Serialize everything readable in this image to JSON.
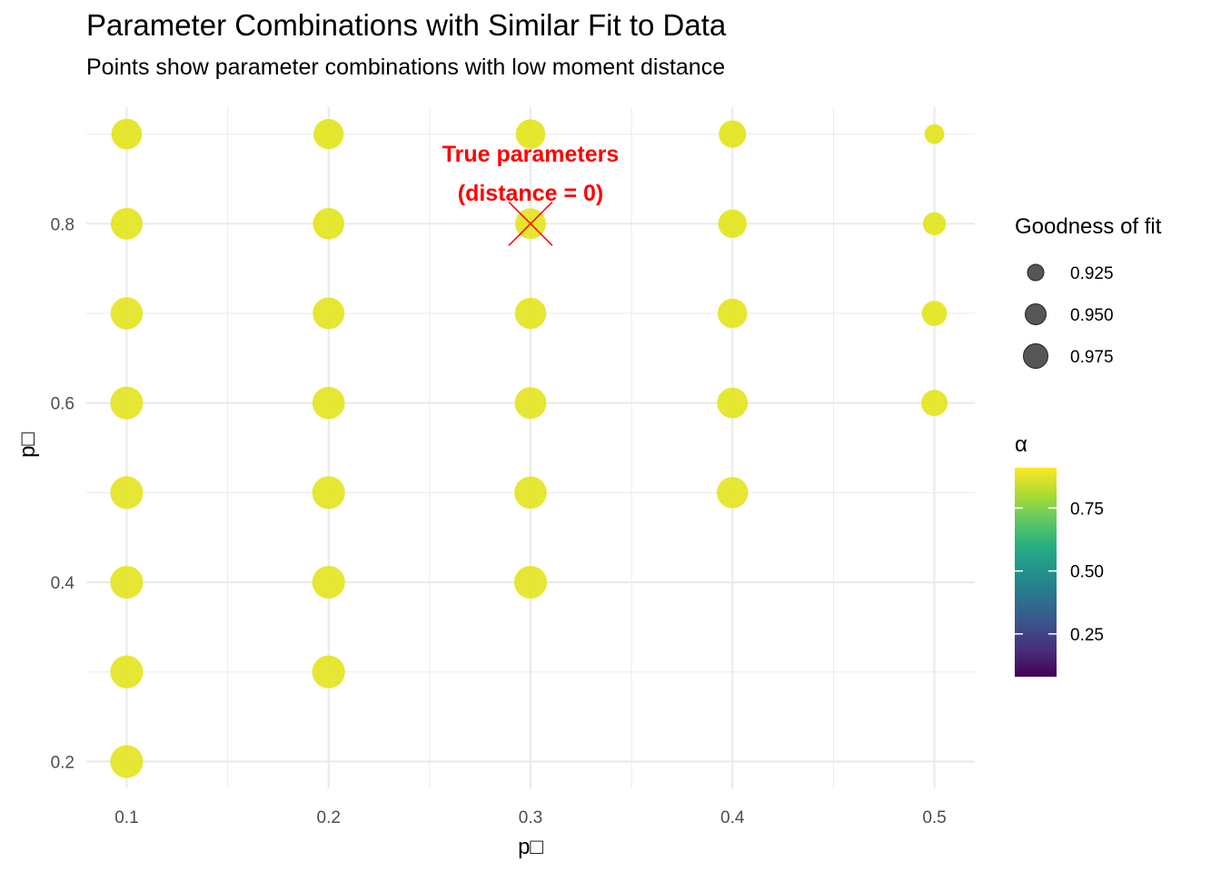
{
  "chart_data": {
    "type": "scatter",
    "title": "Parameter Combinations with Similar Fit to Data",
    "subtitle": "Points show parameter combinations with low moment distance",
    "xlabel": "p□",
    "ylabel": "p□",
    "xlim": [
      0.08,
      0.52
    ],
    "ylim": [
      0.17,
      0.93
    ],
    "x_ticks": [
      "0.1",
      "0.2",
      "0.3",
      "0.4",
      "0.5"
    ],
    "y_ticks": [
      "0.2",
      "0.4",
      "0.6",
      "0.8"
    ],
    "grid": true,
    "legend_position": "right",
    "points": [
      {
        "x": 0.1,
        "y": 0.2,
        "fit": 0.985,
        "alpha": 0.88
      },
      {
        "x": 0.1,
        "y": 0.3,
        "fit": 0.985,
        "alpha": 0.88
      },
      {
        "x": 0.1,
        "y": 0.4,
        "fit": 0.985,
        "alpha": 0.88
      },
      {
        "x": 0.1,
        "y": 0.5,
        "fit": 0.985,
        "alpha": 0.88
      },
      {
        "x": 0.1,
        "y": 0.6,
        "fit": 0.985,
        "alpha": 0.88
      },
      {
        "x": 0.1,
        "y": 0.7,
        "fit": 0.982,
        "alpha": 0.88
      },
      {
        "x": 0.1,
        "y": 0.8,
        "fit": 0.98,
        "alpha": 0.89
      },
      {
        "x": 0.1,
        "y": 0.9,
        "fit": 0.975,
        "alpha": 0.9
      },
      {
        "x": 0.2,
        "y": 0.3,
        "fit": 0.985,
        "alpha": 0.88
      },
      {
        "x": 0.2,
        "y": 0.4,
        "fit": 0.985,
        "alpha": 0.88
      },
      {
        "x": 0.2,
        "y": 0.5,
        "fit": 0.985,
        "alpha": 0.88
      },
      {
        "x": 0.2,
        "y": 0.6,
        "fit": 0.983,
        "alpha": 0.88
      },
      {
        "x": 0.2,
        "y": 0.7,
        "fit": 0.98,
        "alpha": 0.88
      },
      {
        "x": 0.2,
        "y": 0.8,
        "fit": 0.978,
        "alpha": 0.89
      },
      {
        "x": 0.2,
        "y": 0.9,
        "fit": 0.973,
        "alpha": 0.9
      },
      {
        "x": 0.3,
        "y": 0.4,
        "fit": 0.985,
        "alpha": 0.88
      },
      {
        "x": 0.3,
        "y": 0.5,
        "fit": 0.983,
        "alpha": 0.88
      },
      {
        "x": 0.3,
        "y": 0.6,
        "fit": 0.98,
        "alpha": 0.88
      },
      {
        "x": 0.3,
        "y": 0.7,
        "fit": 0.978,
        "alpha": 0.89
      },
      {
        "x": 0.3,
        "y": 0.8,
        "fit": 0.975,
        "alpha": 0.89
      },
      {
        "x": 0.3,
        "y": 0.9,
        "fit": 0.97,
        "alpha": 0.9
      },
      {
        "x": 0.4,
        "y": 0.5,
        "fit": 0.978,
        "alpha": 0.88
      },
      {
        "x": 0.4,
        "y": 0.6,
        "fit": 0.975,
        "alpha": 0.89
      },
      {
        "x": 0.4,
        "y": 0.7,
        "fit": 0.97,
        "alpha": 0.89
      },
      {
        "x": 0.4,
        "y": 0.8,
        "fit": 0.965,
        "alpha": 0.9
      },
      {
        "x": 0.4,
        "y": 0.9,
        "fit": 0.96,
        "alpha": 0.9
      },
      {
        "x": 0.5,
        "y": 0.6,
        "fit": 0.955,
        "alpha": 0.89
      },
      {
        "x": 0.5,
        "y": 0.7,
        "fit": 0.95,
        "alpha": 0.9
      },
      {
        "x": 0.5,
        "y": 0.8,
        "fit": 0.94,
        "alpha": 0.9
      },
      {
        "x": 0.5,
        "y": 0.9,
        "fit": 0.925,
        "alpha": 0.91
      }
    ],
    "true_point": {
      "x": 0.3,
      "y": 0.8
    },
    "annotation": {
      "line1": "True parameters",
      "line2": "(distance = 0)",
      "color": "#ff0000",
      "x": 0.3,
      "y": 0.8
    },
    "size_legend": {
      "title": "Goodness of fit",
      "labels": [
        "0.925",
        "0.950",
        "0.975"
      ],
      "values": [
        0.925,
        0.95,
        0.975
      ]
    },
    "color_legend": {
      "title": "α",
      "labels": [
        "0.75",
        "0.50",
        "0.25"
      ],
      "values": [
        0.75,
        0.5,
        0.25
      ],
      "range": [
        0.08,
        0.91
      ],
      "palette": "viridis"
    },
    "colors": {
      "point": "#e2e418",
      "annotation": "#ff0000",
      "grid": "#ebebeb",
      "legend_point": "#4d4d4d"
    }
  }
}
